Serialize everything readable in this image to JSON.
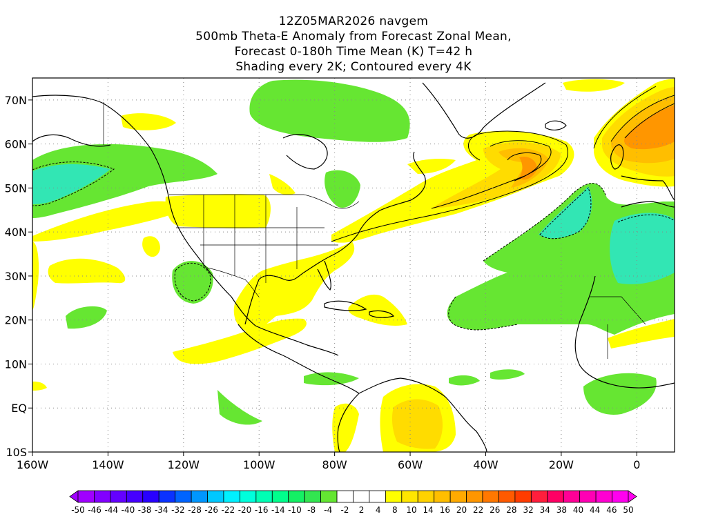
{
  "title": {
    "lines": [
      "12Z05MAR2026 navgem",
      "500mb Theta-E Anomaly from Forecast Zonal Mean,",
      "Forecast 0-180h Time Mean (K) T=42 h",
      "Shading every 2K; Contoured every 4K"
    ]
  },
  "map": {
    "lon_range": [
      -160,
      10
    ],
    "lat_range": [
      -10,
      75
    ],
    "lon_ticks": [
      {
        "lon": -160,
        "label": "160W"
      },
      {
        "lon": -140,
        "label": "140W"
      },
      {
        "lon": -120,
        "label": "120W"
      },
      {
        "lon": -100,
        "label": "100W"
      },
      {
        "lon": -80,
        "label": "80W"
      },
      {
        "lon": -60,
        "label": "60W"
      },
      {
        "lon": -40,
        "label": "40W"
      },
      {
        "lon": -20,
        "label": "20W"
      },
      {
        "lon": 0,
        "label": "0"
      }
    ],
    "lat_ticks": [
      {
        "lat": 70,
        "label": "70N"
      },
      {
        "lat": 60,
        "label": "60N"
      },
      {
        "lat": 50,
        "label": "50N"
      },
      {
        "lat": 40,
        "label": "40N"
      },
      {
        "lat": 30,
        "label": "30N"
      },
      {
        "lat": 20,
        "label": "20N"
      },
      {
        "lat": 10,
        "label": "10N"
      },
      {
        "lat": 0,
        "label": "EQ"
      },
      {
        "lat": -10,
        "label": "10S"
      }
    ],
    "gridlines": "dotted",
    "colors": {
      "green": "#66e632",
      "light_green": "#32e678",
      "teal": "#32e6b4",
      "yellow": "#ffff00",
      "gold": "#ffdc00",
      "amber": "#ffbe00",
      "orange": "#ff9600"
    }
  },
  "colorbar": {
    "labels": [
      "-50",
      "-46",
      "-44",
      "-40",
      "-38",
      "-34",
      "-32",
      "-28",
      "-26",
      "-22",
      "-20",
      "-16",
      "-14",
      "-10",
      "-8",
      "-4",
      "-2",
      "2",
      "4",
      "8",
      "10",
      "14",
      "16",
      "20",
      "22",
      "26",
      "28",
      "32",
      "34",
      "38",
      "40",
      "44",
      "46",
      "50"
    ],
    "colors": [
      "#a000ff",
      "#8200ff",
      "#6400ff",
      "#4600ff",
      "#2800ff",
      "#0a32ff",
      "#0064ff",
      "#0096ff",
      "#00c8ff",
      "#00f0ff",
      "#00ffdc",
      "#00ffb4",
      "#00ff8c",
      "#14f064",
      "#32e650",
      "#64e632",
      "#ffffff",
      "#ffffff",
      "#ffffff",
      "#ffff00",
      "#ffe600",
      "#ffd200",
      "#ffbe00",
      "#ffaa00",
      "#ff9600",
      "#ff7800",
      "#ff5a00",
      "#ff3c00",
      "#ff1e3c",
      "#ff0064",
      "#ff0096",
      "#ff00b4",
      "#ff00d2",
      "#ff00f0"
    ]
  }
}
